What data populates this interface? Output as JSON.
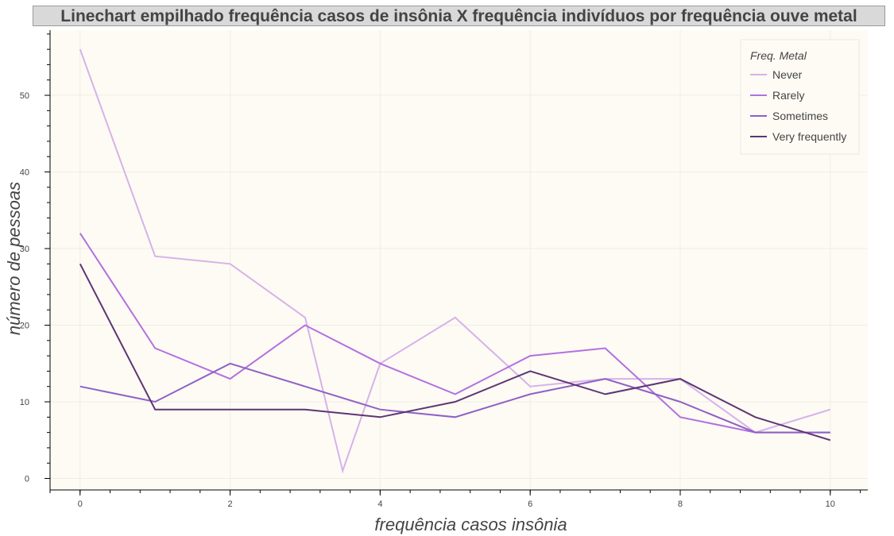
{
  "chart_data": {
    "type": "line",
    "title": "Linechart empilhado frequência casos de insônia X frequência indivíduos por frequência ouve metal",
    "xlabel": "frequência casos insônia",
    "ylabel": "número de pessoas",
    "xlim": [
      -0.4,
      10.5
    ],
    "ylim": [
      -1.5,
      58.5
    ],
    "x_ticks": [
      0,
      2,
      4,
      6,
      8,
      10
    ],
    "y_ticks": [
      0,
      10,
      20,
      30,
      40,
      50
    ],
    "grid": true,
    "legend": {
      "title": "Freq. Metal",
      "placement": "top-right"
    },
    "series": [
      {
        "name": "Never",
        "color": "#d7b2ea",
        "x": [
          0,
          1,
          2,
          3,
          3.5,
          4,
          5,
          6,
          7,
          8,
          9,
          10
        ],
        "y": [
          56,
          29,
          28,
          21,
          1,
          15,
          21,
          12,
          13,
          13,
          6,
          9
        ]
      },
      {
        "name": "Rarely",
        "color": "#b270e0",
        "x": [
          0,
          1,
          2,
          3,
          4,
          5,
          6,
          7,
          8,
          9,
          10
        ],
        "y": [
          32,
          17,
          13,
          20,
          15,
          11,
          16,
          17,
          8,
          6,
          6
        ]
      },
      {
        "name": "Sometimes",
        "color": "#9060c6",
        "x": [
          0,
          1,
          2,
          3,
          4,
          5,
          6,
          7,
          8,
          9,
          10
        ],
        "y": [
          12,
          10,
          15,
          12,
          9,
          8,
          11,
          13,
          10,
          6,
          6
        ]
      },
      {
        "name": "Very frequently",
        "color": "#5e3574",
        "x": [
          0,
          1,
          2,
          3,
          4,
          5,
          6,
          7,
          8,
          9,
          10
        ],
        "y": [
          28,
          9,
          9,
          9,
          8,
          10,
          14,
          11,
          13,
          8,
          5
        ]
      }
    ]
  }
}
